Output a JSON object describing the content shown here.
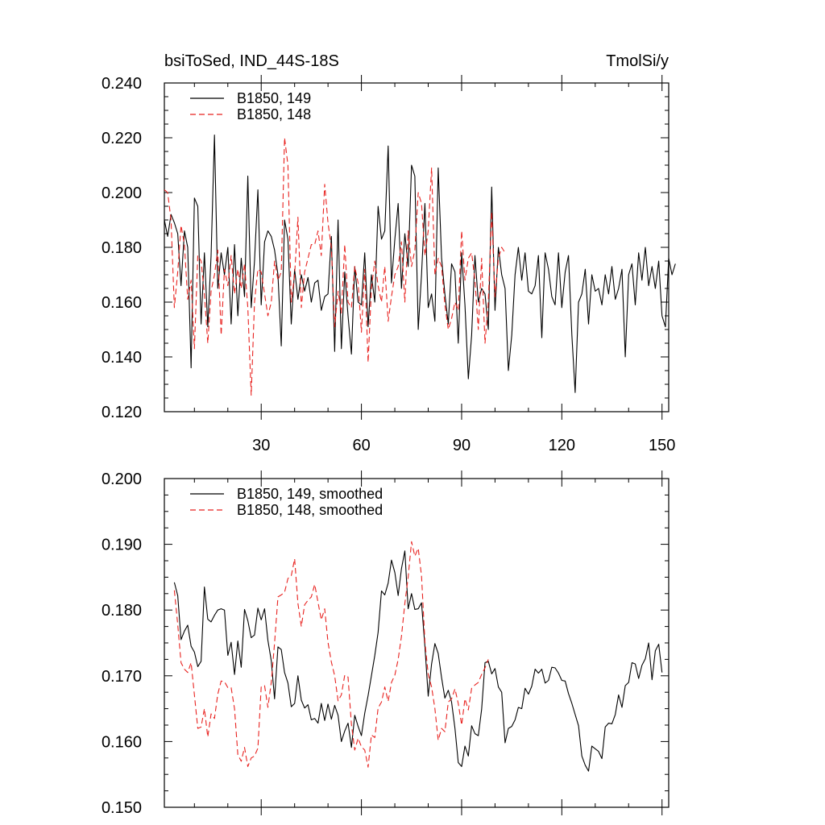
{
  "chart_data": [
    {
      "type": "line",
      "title_left": "bsiToSed, IND_44S-18S",
      "title_right": "TmolSi/y",
      "xlabel": "",
      "ylabel": "",
      "xlim": [
        1,
        152
      ],
      "ylim": [
        0.12,
        0.24
      ],
      "yticks": [
        "0.120",
        "0.140",
        "0.160",
        "0.180",
        "0.200",
        "0.220",
        "0.240"
      ],
      "xticks": [
        "30",
        "60",
        "90",
        "120",
        "150"
      ],
      "legend_position": "top-left",
      "series": [
        {
          "name": "B1850, 149",
          "color": "#000000",
          "dash": "solid",
          "x_start": 1,
          "values": [
            0.19,
            0.184,
            0.192,
            0.189,
            0.185,
            0.166,
            0.186,
            0.18,
            0.136,
            0.198,
            0.195,
            0.152,
            0.178,
            0.151,
            0.177,
            0.221,
            0.165,
            0.178,
            0.17,
            0.18,
            0.152,
            0.181,
            0.155,
            0.176,
            0.162,
            0.206,
            0.158,
            0.175,
            0.201,
            0.159,
            0.182,
            0.186,
            0.184,
            0.179,
            0.17,
            0.144,
            0.19,
            0.183,
            0.152,
            0.172,
            0.161,
            0.17,
            0.164,
            0.169,
            0.16,
            0.167,
            0.168,
            0.157,
            0.162,
            0.163,
            0.184,
            0.142,
            0.19,
            0.143,
            0.171,
            0.155,
            0.141,
            0.173,
            0.16,
            0.159,
            0.178,
            0.151,
            0.17,
            0.16,
            0.195,
            0.183,
            0.186,
            0.217,
            0.167,
            0.183,
            0.196,
            0.165,
            0.185,
            0.173,
            0.21,
            0.206,
            0.15,
            0.17,
            0.196,
            0.158,
            0.163,
            0.153,
            0.209,
            0.176,
            0.163,
            0.152,
            0.174,
            0.171,
            0.145,
            0.178,
            0.159,
            0.132,
            0.148,
            0.177,
            0.16,
            0.165,
            0.163,
            0.15,
            0.202,
            0.157,
            0.18,
            0.17,
            0.165,
            0.135,
            0.148,
            0.17,
            0.18,
            0.168,
            0.178,
            0.164,
            0.163,
            0.166,
            0.177,
            0.147,
            0.178,
            0.172,
            0.162,
            0.159,
            0.178,
            0.158,
            0.171,
            0.177,
            0.148,
            0.127,
            0.16,
            0.163,
            0.172,
            0.152,
            0.17,
            0.164,
            0.165,
            0.159,
            0.17,
            0.163,
            0.173,
            0.161,
            0.165,
            0.172,
            0.14,
            0.17,
            0.174,
            0.159,
            0.178,
            0.168,
            0.18,
            0.166,
            0.173,
            0.165,
            0.175,
            0.155,
            0.151,
            0.176,
            0.17,
            0.174
          ]
        },
        {
          "name": "B1850, 148",
          "color": "#e8221f",
          "dash": "dashed",
          "x_start": 1,
          "values": [
            0.201,
            0.2,
            0.19,
            0.158,
            0.171,
            0.188,
            0.181,
            0.161,
            0.168,
            0.143,
            0.177,
            0.175,
            0.163,
            0.145,
            0.164,
            0.17,
            0.179,
            0.148,
            0.172,
            0.166,
            0.177,
            0.163,
            0.172,
            0.165,
            0.174,
            0.158,
            0.126,
            0.16,
            0.172,
            0.171,
            0.163,
            0.155,
            0.16,
            0.175,
            0.168,
            0.171,
            0.22,
            0.21,
            0.16,
            0.17,
            0.191,
            0.158,
            0.171,
            0.176,
            0.181,
            0.181,
            0.186,
            0.177,
            0.203,
            0.189,
            0.18,
            0.151,
            0.164,
            0.156,
            0.181,
            0.16,
            0.158,
            0.173,
            0.167,
            0.149,
            0.172,
            0.138,
            0.165,
            0.175,
            0.166,
            0.16,
            0.173,
            0.153,
            0.162,
            0.17,
            0.173,
            0.182,
            0.16,
            0.186,
            0.173,
            0.179,
            0.2,
            0.196,
            0.177,
            0.186,
            0.209,
            0.17,
            0.176,
            0.173,
            0.159,
            0.15,
            0.154,
            0.16,
            0.157,
            0.186,
            0.168,
            0.176,
            0.178,
            0.168,
            0.15,
            0.176,
            0.145,
            0.16,
            0.193,
            0.162,
            0.176,
            0.18,
            0.178
          ]
        }
      ]
    },
    {
      "type": "line",
      "xlabel": "",
      "ylabel": "",
      "xlim": [
        1,
        152
      ],
      "ylim": [
        0.15,
        0.2
      ],
      "yticks": [
        "0.150",
        "0.160",
        "0.170",
        "0.180",
        "0.190",
        "0.200"
      ],
      "legend_position": "top-left",
      "series": [
        {
          "name": "B1850, 149, smoothed",
          "color": "#000000",
          "dash": "solid",
          "x_start": 4,
          "values": [
            0.1842,
            0.1822,
            0.1755,
            0.1768,
            0.1777,
            0.1745,
            0.1736,
            0.1714,
            0.1722,
            0.1835,
            0.1786,
            0.1782,
            0.1792,
            0.18,
            0.1802,
            0.18,
            0.1731,
            0.1751,
            0.1702,
            0.1753,
            0.1713,
            0.1801,
            0.1784,
            0.1758,
            0.1762,
            0.1803,
            0.1785,
            0.1802,
            0.1754,
            0.1723,
            0.1665,
            0.1744,
            0.174,
            0.1705,
            0.1689,
            0.1653,
            0.1658,
            0.17,
            0.1663,
            0.1651,
            0.1656,
            0.1633,
            0.1635,
            0.1628,
            0.1658,
            0.1632,
            0.1657,
            0.1634,
            0.1655,
            0.164,
            0.16,
            0.1616,
            0.1628,
            0.1591,
            0.164,
            0.1623,
            0.1609,
            0.1643,
            0.167,
            0.17,
            0.1731,
            0.1766,
            0.1829,
            0.1823,
            0.1841,
            0.1876,
            0.1857,
            0.1822,
            0.1863,
            0.189,
            0.1802,
            0.1825,
            0.1801,
            0.1802,
            0.1811,
            0.1745,
            0.1669,
            0.1718,
            0.1749,
            0.1734,
            0.1697,
            0.1666,
            0.1678,
            0.166,
            0.162,
            0.1568,
            0.1562,
            0.1593,
            0.1578,
            0.1624,
            0.1612,
            0.1609,
            0.1649,
            0.172,
            0.1722,
            0.1703,
            0.1711,
            0.1683,
            0.1675,
            0.1598,
            0.162,
            0.1623,
            0.1633,
            0.1652,
            0.165,
            0.1681,
            0.1672,
            0.1684,
            0.171,
            0.1704,
            0.171,
            0.1689,
            0.1693,
            0.1713,
            0.1712,
            0.1704,
            0.1693,
            0.1692,
            0.1673,
            0.1658,
            0.1641,
            0.1624,
            0.1578,
            0.1564,
            0.1555,
            0.1593,
            0.1589,
            0.1585,
            0.1574,
            0.1622,
            0.1628,
            0.1627,
            0.1641,
            0.1671,
            0.1652,
            0.1685,
            0.169,
            0.172,
            0.1718,
            0.1696,
            0.1716,
            0.1726,
            0.175,
            0.1694,
            0.1738,
            0.1748,
            0.1705
          ]
        },
        {
          "name": "B1850, 148, smoothed",
          "color": "#e8221f",
          "dash": "dashed",
          "x_start": 4,
          "values": [
            0.183,
            0.1778,
            0.172,
            0.171,
            0.1705,
            0.172,
            0.1671,
            0.162,
            0.1622,
            0.165,
            0.1607,
            0.1642,
            0.1635,
            0.1672,
            0.1692,
            0.1691,
            0.1682,
            0.1682,
            0.165,
            0.158,
            0.157,
            0.1591,
            0.1562,
            0.1575,
            0.1578,
            0.159,
            0.1683,
            0.1685,
            0.1652,
            0.169,
            0.175,
            0.182,
            0.1823,
            0.1827,
            0.1848,
            0.1852,
            0.1878,
            0.181,
            0.1775,
            0.1808,
            0.1815,
            0.182,
            0.1839,
            0.1812,
            0.1785,
            0.1802,
            0.1751,
            0.1721,
            0.17,
            0.1662,
            0.1671,
            0.1701,
            0.1698,
            0.1626,
            0.1587,
            0.1605,
            0.1592,
            0.1587,
            0.1561,
            0.161,
            0.1606,
            0.1651,
            0.166,
            0.1683,
            0.1661,
            0.169,
            0.1701,
            0.1725,
            0.176,
            0.181,
            0.185,
            0.1904,
            0.1882,
            0.1894,
            0.1852,
            0.1752,
            0.1702,
            0.1683,
            0.165,
            0.1602,
            0.162,
            0.1615,
            0.166,
            0.1665,
            0.168,
            0.1658,
            0.1625,
            0.1665,
            0.1648,
            0.1681,
            0.1686,
            0.169,
            0.1702,
            0.1712,
            0.1725
          ]
        }
      ]
    }
  ]
}
